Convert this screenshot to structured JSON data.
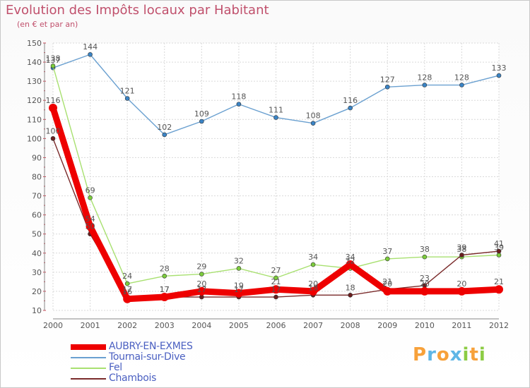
{
  "title": "Evolution des Impôts locaux par Habitant",
  "subtitle": "(en € et par an)",
  "brand": {
    "letters": [
      "P",
      "r",
      "o",
      "x",
      "i",
      "t",
      "i"
    ],
    "colors": [
      "#f7a13a",
      "#5fb6e6",
      "#f7a13a",
      "#5fb6e6",
      "#8ccc44",
      "#f7a13a",
      "#8ccc44"
    ]
  },
  "chart_data": {
    "type": "line",
    "title": "Evolution des Impôts locaux par Habitant",
    "ylabel": "(en € et par an)",
    "xlabel": "",
    "x": [
      "2000",
      "2001",
      "2002",
      "2003",
      "2004",
      "2005",
      "2006",
      "2007",
      "2008",
      "2009",
      "2010",
      "2011",
      "2012"
    ],
    "ylim": [
      10,
      150
    ],
    "yticks": [
      10,
      20,
      30,
      40,
      50,
      60,
      70,
      80,
      90,
      100,
      110,
      120,
      130,
      140,
      150
    ],
    "grid": true,
    "legend": "bottom-left",
    "series": [
      {
        "name": "AUBRY-EN-EXMES",
        "color": "#ee0000",
        "marker": "#ee0000",
        "weight": "thick",
        "values": [
          116,
          54,
          16,
          17,
          20,
          19,
          21,
          20,
          34,
          20,
          20,
          20,
          21
        ]
      },
      {
        "name": "Tournai-sur-Dive",
        "color": "#6aa0d0",
        "marker": "#3a84c6",
        "weight": "thin",
        "values": [
          137,
          144,
          121,
          102,
          109,
          118,
          111,
          108,
          116,
          127,
          128,
          128,
          133
        ]
      },
      {
        "name": "Fel",
        "color": "#a8e070",
        "marker": "#7ccc3c",
        "weight": "thin",
        "values": [
          138,
          69,
          24,
          28,
          29,
          32,
          27,
          34,
          32,
          37,
          38,
          38,
          39
        ]
      },
      {
        "name": "Chambois",
        "color": "#7a2a2a",
        "marker": "#6a1e1e",
        "weight": "thin",
        "values": [
          100,
          50,
          17,
          17,
          17,
          17,
          17,
          18,
          18,
          21,
          23,
          39,
          41
        ]
      }
    ],
    "data_labels": [
      [
        "116",
        "54",
        "16",
        "17",
        "20",
        "19",
        "21",
        "20",
        "34",
        "20",
        "20",
        "20",
        "21"
      ],
      [
        "137",
        "144",
        "121",
        "102",
        "109",
        "118",
        "111",
        "108",
        "116",
        "127",
        "128",
        "128",
        "133"
      ],
      [
        "138",
        "69",
        "24",
        "28",
        "29",
        "32",
        "27",
        "34",
        "32",
        "37",
        "38",
        "38",
        "39"
      ],
      [
        "100",
        "50",
        "17",
        "17",
        "17",
        "17",
        "17",
        "18",
        "18",
        "21",
        "23",
        "39",
        "41"
      ]
    ]
  }
}
